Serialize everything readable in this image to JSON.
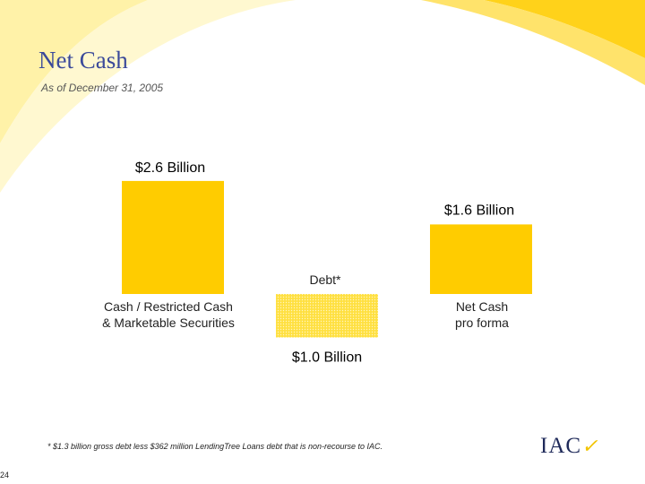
{
  "header": {
    "title": "Net Cash",
    "subtitle": "As of December 31, 2005"
  },
  "footer": {
    "footnote": "* $1.3 billion gross debt less $362 million LendingTree Loans debt that is non-recourse to IAC.",
    "page_number": "24",
    "logo_text": "IAC"
  },
  "colors": {
    "bar": "#ffcc00",
    "debt_fill": "#f4e47a",
    "swoosh": "#fff2a8",
    "title": "#3b4a9a"
  },
  "chart_data": {
    "type": "bar",
    "subtype": "waterfall",
    "unit": "Billion",
    "categories": [
      "Cash / Restricted Cash & Marketable Securities",
      "Debt*",
      "Net Cash pro forma"
    ],
    "category_lines": [
      [
        "Cash / Restricted Cash",
        "& Marketable Securities"
      ],
      [
        "Debt*"
      ],
      [
        "Net Cash",
        "pro forma"
      ]
    ],
    "values": [
      2.6,
      -1.0,
      1.6
    ],
    "data_labels": [
      "$2.6 Billion",
      "$1.0 Billion",
      "$1.6 Billion"
    ],
    "ylim": [
      -1.0,
      2.6
    ],
    "grid": false,
    "title": "",
    "xlabel": "",
    "ylabel": ""
  }
}
